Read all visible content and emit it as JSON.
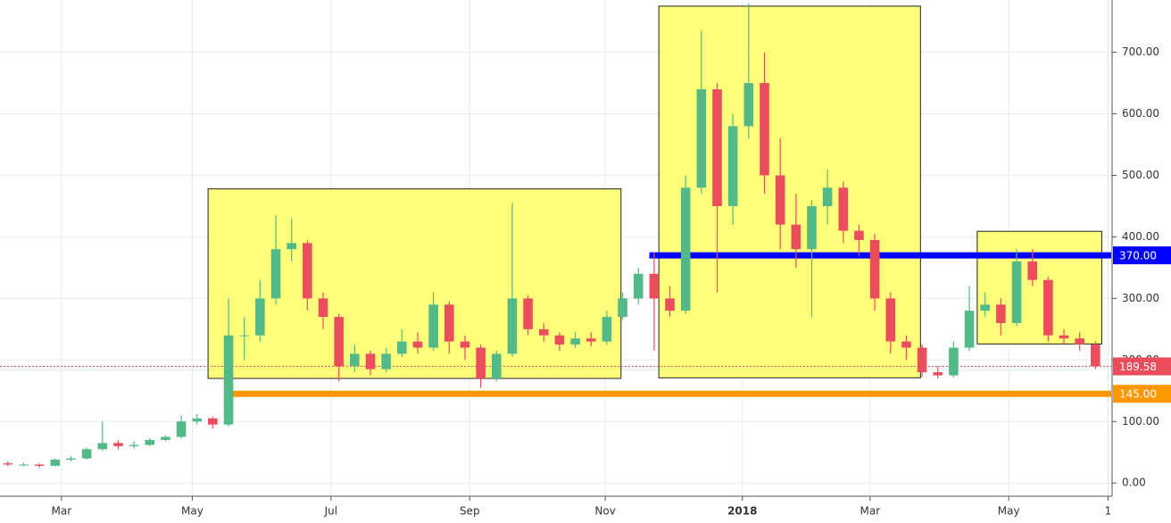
{
  "chart_data": {
    "type": "candlestick",
    "up_color": "#53b987",
    "down_color": "#eb4d5c",
    "open": [
      32,
      30,
      30,
      28,
      38,
      40,
      55,
      65,
      60,
      62,
      70,
      75,
      100,
      105,
      95,
      240,
      240,
      300,
      380,
      390,
      300,
      270,
      190,
      210,
      185,
      210,
      230,
      220,
      290,
      230,
      220,
      170,
      210,
      300,
      250,
      240,
      225,
      235,
      230,
      270,
      300,
      340,
      300,
      280,
      480,
      640,
      450,
      580,
      650,
      500,
      420,
      380,
      450,
      480,
      410,
      395,
      300,
      230,
      220,
      180,
      175,
      220,
      280,
      290,
      260,
      360,
      330,
      240,
      235,
      225
    ],
    "high": [
      35,
      33,
      32,
      40,
      44,
      58,
      100,
      70,
      68,
      73,
      78,
      110,
      112,
      108,
      300,
      270,
      330,
      435,
      430,
      395,
      310,
      275,
      225,
      215,
      220,
      250,
      245,
      310,
      295,
      240,
      225,
      215,
      455,
      305,
      260,
      245,
      245,
      245,
      280,
      310,
      350,
      375,
      320,
      500,
      735,
      650,
      600,
      780,
      700,
      560,
      470,
      460,
      510,
      490,
      420,
      405,
      310,
      240,
      225,
      190,
      230,
      320,
      310,
      300,
      380,
      380,
      335,
      250,
      245,
      230
    ],
    "low": [
      27,
      27,
      25,
      27,
      35,
      38,
      52,
      55,
      56,
      60,
      68,
      72,
      95,
      88,
      92,
      200,
      230,
      290,
      360,
      280,
      250,
      165,
      180,
      175,
      180,
      205,
      210,
      215,
      210,
      200,
      155,
      165,
      205,
      240,
      230,
      215,
      220,
      222,
      225,
      265,
      290,
      215,
      270,
      275,
      470,
      310,
      420,
      560,
      470,
      380,
      350,
      270,
      420,
      390,
      370,
      280,
      210,
      200,
      172,
      170,
      172,
      215,
      270,
      240,
      255,
      320,
      230,
      225,
      215,
      185
    ],
    "close": [
      30,
      30,
      28,
      38,
      40,
      55,
      65,
      60,
      62,
      70,
      75,
      100,
      105,
      95,
      240,
      240,
      300,
      380,
      390,
      300,
      270,
      190,
      210,
      185,
      210,
      230,
      220,
      290,
      230,
      220,
      170,
      210,
      300,
      250,
      240,
      225,
      235,
      230,
      270,
      300,
      340,
      300,
      280,
      480,
      640,
      450,
      580,
      650,
      500,
      420,
      380,
      450,
      480,
      410,
      395,
      300,
      230,
      220,
      180,
      175,
      220,
      280,
      290,
      260,
      360,
      330,
      240,
      235,
      225,
      190
    ],
    "xlim": [
      -0.5,
      70
    ],
    "xticks": [
      {
        "value": 3.4,
        "label": "Mar"
      },
      {
        "value": 11.7,
        "label": "May"
      },
      {
        "value": 20.5,
        "label": "Jul"
      },
      {
        "value": 29.3,
        "label": "Sep"
      },
      {
        "value": 37.9,
        "label": "Nov"
      },
      {
        "value": 46.6,
        "label": "2018"
      },
      {
        "value": 54.7,
        "label": "Mar"
      },
      {
        "value": 63.5,
        "label": "May"
      },
      {
        "value": 69.8,
        "label": "1"
      }
    ],
    "ylim": [
      -20,
      785
    ],
    "yticks": [
      {
        "value": 0,
        "label": "0.00"
      },
      {
        "value": 100,
        "label": "100.00"
      },
      {
        "value": 200,
        "label": "200.00"
      },
      {
        "value": 300,
        "label": "300.00"
      },
      {
        "value": 400,
        "label": "400.00"
      },
      {
        "value": 500,
        "label": "500.00"
      },
      {
        "value": 600,
        "label": "600.00"
      },
      {
        "value": 700,
        "label": "700.00"
      }
    ],
    "grid": true,
    "boxes": [
      {
        "x": [
          12.7,
          38.9
        ],
        "y": [
          170,
          478
        ]
      },
      {
        "x": [
          41.3,
          57.9
        ],
        "y": [
          171,
          775
        ]
      },
      {
        "x": [
          61.5,
          69.4
        ],
        "y": [
          226,
          409
        ]
      }
    ],
    "levels": [
      {
        "value": 370,
        "label": "370.00",
        "color": "#0000ff",
        "start": 40.7
      },
      {
        "value": 145,
        "label": "145.00",
        "color": "#ff9800",
        "start": 14.1
      },
      {
        "value": 189.58,
        "label": "189.58",
        "color": "#eb4d5c",
        "start": -0.5
      }
    ]
  }
}
